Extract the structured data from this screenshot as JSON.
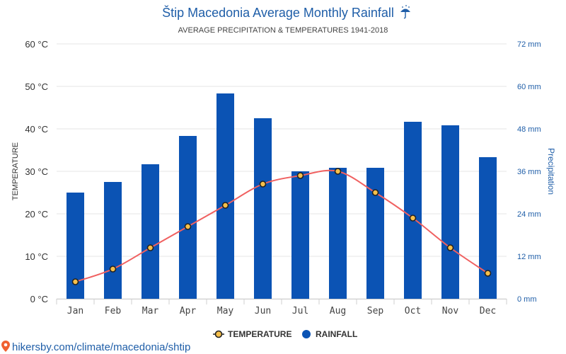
{
  "title": "Štip Macedonia Average Monthly Rainfall",
  "title_icon": "umbrella-rain-icon",
  "subtitle": "AVERAGE PRECIPITATION & TEMPERATURES 1941-2018",
  "source_url": "hikersby.com/climate/macedonia/shtip",
  "source_icon": "map-pin-icon",
  "legend": {
    "temperature": "TEMPERATURE",
    "rainfall": "RAINFALL"
  },
  "colors": {
    "bar": "#0b53b4",
    "line": "#f06060",
    "marker_fill": "#f6bf4a",
    "marker_stroke": "#222222",
    "accent": "#1f5ea8",
    "grid": "#e6e6e6"
  },
  "chart_data": {
    "type": "bar",
    "categories": [
      "Jan",
      "Feb",
      "Mar",
      "Apr",
      "May",
      "Jun",
      "Jul",
      "Aug",
      "Sep",
      "Oct",
      "Nov",
      "Dec"
    ],
    "series": [
      {
        "name": "RAINFALL",
        "type": "bar",
        "axis": "right",
        "unit": "mm",
        "values": [
          30,
          33,
          38,
          46,
          58,
          51,
          36,
          37,
          37,
          50,
          49,
          40
        ]
      },
      {
        "name": "TEMPERATURE",
        "type": "line",
        "axis": "left",
        "unit": "°C",
        "values": [
          4,
          7,
          12,
          17,
          22,
          27,
          29,
          30,
          25,
          19,
          12,
          6
        ]
      }
    ],
    "y_left": {
      "label": "TEMPERATURE",
      "range": [
        0,
        60
      ],
      "ticks": [
        "0 °C",
        "10 °C",
        "20 °C",
        "30 °C",
        "40 °C",
        "50 °C",
        "60 °C"
      ]
    },
    "y_right": {
      "label": "Precipitation",
      "range": [
        0,
        72
      ],
      "ticks": [
        "0 mm",
        "12 mm",
        "24 mm",
        "36 mm",
        "48 mm",
        "60 mm",
        "72 mm"
      ]
    },
    "grid": true,
    "legend_position": "bottom"
  }
}
